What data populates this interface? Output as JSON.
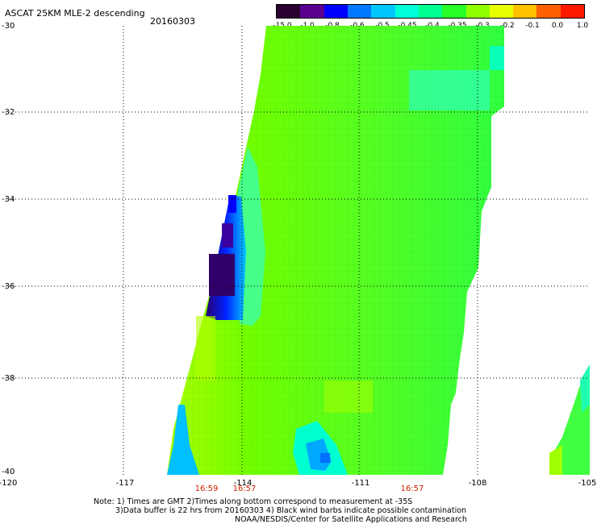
{
  "header": {
    "title": "ASCAT 25KM MLE-2 descending",
    "date": "20160303"
  },
  "colorbar": {
    "labels": [
      "-15.0",
      "-1.0",
      "-0.8",
      "-0.6",
      "-0.5",
      "-0.45",
      "-0.4",
      "-0.35",
      "-0.3",
      "-0.2",
      "-0.1",
      "0.0",
      "1.0"
    ],
    "colors": [
      "#2a0030",
      "#5a0090",
      "#0000ff",
      "#0078ff",
      "#00c8ff",
      "#00ffd8",
      "#00ff90",
      "#28ff28",
      "#90ff00",
      "#e8ff00",
      "#ffc000",
      "#ff6000",
      "#ff1800"
    ]
  },
  "map": {
    "lat_labels": [
      "-30",
      "-32",
      "-34",
      "-36",
      "-38",
      "-40"
    ],
    "lon_labels": [
      "-120",
      "-117",
      "-114",
      "-111",
      "-108",
      "-105"
    ],
    "time_labels": [
      "16:59",
      "16:57",
      "16:57"
    ],
    "grid": true
  },
  "notes": {
    "line1": "Note: 1) Times are GMT 2)Times along bottom correspond to measurement at -35S",
    "line2": "3)Data buffer is 22 hrs from 20160303 4) Black wind barbs indicate possible contamination",
    "line3": "NOAA/NESDIS/Center for Satellite Applications and Research"
  }
}
